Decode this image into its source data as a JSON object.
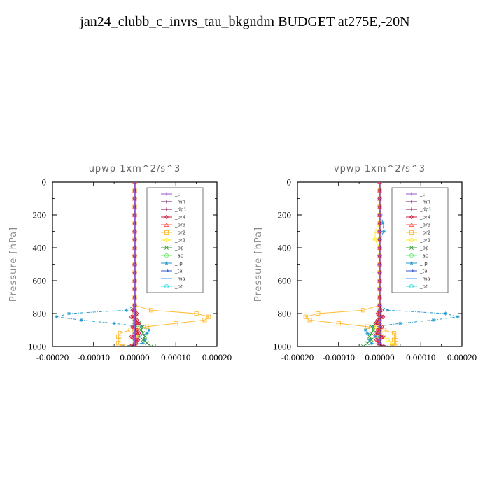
{
  "page": {
    "title": "jan24_clubb_c_invrs_tau_bkgndm  BUDGET at275E,-20N"
  },
  "chart_data": [
    {
      "type": "line",
      "title": "upwp   1xm^2/s^3",
      "xlabel": "",
      "ylabel": "Pressure [hPa]",
      "xlim": [
        -0.0002,
        0.0002
      ],
      "ylim": [
        1000,
        0
      ],
      "x_ticks": [
        "-0.00020",
        "-0.00010",
        "0.00000",
        "0.00010",
        "0.00020"
      ],
      "y_ticks": [
        "0",
        "200",
        "400",
        "600",
        "800",
        "1000"
      ],
      "legend_position": "top-right",
      "pressure": [
        0,
        50,
        100,
        150,
        200,
        250,
        300,
        350,
        400,
        450,
        500,
        550,
        600,
        650,
        700,
        750,
        780,
        800,
        820,
        840,
        860,
        880,
        900,
        920,
        940,
        960,
        980,
        1000
      ],
      "series": [
        {
          "name": "_cl",
          "color": "#9955cc",
          "marker": "plus",
          "values": [
            0,
            0,
            0,
            0,
            0,
            0,
            0,
            0,
            0,
            0,
            0,
            0,
            0,
            0,
            0,
            0,
            0,
            0,
            0,
            0,
            0,
            0,
            0,
            0,
            0,
            0,
            0,
            0
          ]
        },
        {
          "name": "_mfl",
          "color": "#7a1a6a",
          "marker": "plus",
          "values": [
            0,
            0,
            0,
            0,
            0,
            0,
            0,
            0,
            0,
            0,
            0,
            0,
            0,
            0,
            0,
            0,
            0,
            0,
            0,
            0,
            0,
            0,
            0,
            0,
            0,
            0,
            0,
            0
          ]
        },
        {
          "name": "_dp1",
          "color": "#8b0a50",
          "marker": "plus",
          "values": [
            0,
            0,
            0,
            0,
            0,
            0,
            0,
            0,
            0,
            0,
            0,
            0,
            0,
            0,
            0,
            0,
            0,
            0,
            0,
            0,
            0,
            0,
            0,
            0,
            0,
            0,
            0,
            -5e-06
          ]
        },
        {
          "name": "_pr4",
          "color": "#cc2244",
          "marker": "diamond",
          "values": [
            0,
            0,
            0,
            0,
            0,
            0,
            0,
            0,
            0,
            0,
            0,
            0,
            0,
            0,
            0,
            0,
            -5e-06,
            5e-06,
            -8e-06,
            5e-06,
            1e-05,
            -5e-06,
            5e-06,
            1e-05,
            -8e-06,
            8e-06,
            3e-06,
            -1e-05
          ]
        },
        {
          "name": "_pr3",
          "color": "#ff5555",
          "marker": "triangle",
          "values": [
            0,
            0,
            0,
            0,
            0,
            0,
            0,
            0,
            0,
            0,
            0,
            0,
            0,
            0,
            0,
            0,
            0,
            3e-06,
            -5e-06,
            3e-06,
            6e-06,
            -3e-06,
            3e-06,
            6e-06,
            -5e-06,
            5e-06,
            2e-06,
            -8e-06
          ]
        },
        {
          "name": "_pr2",
          "color": "#ffbb33",
          "marker": "square",
          "values": [
            0,
            0,
            0,
            0,
            0,
            0,
            0,
            0,
            0,
            0,
            0,
            0,
            0,
            0,
            0,
            0,
            4e-05,
            0.00015,
            0.00018,
            0.00017,
            0.0001,
            3e-05,
            -1e-05,
            -3.5e-05,
            -4e-05,
            -3.5e-05,
            -4e-05,
            -3e-05
          ]
        },
        {
          "name": "_pr1",
          "color": "#ffee33",
          "marker": "circle",
          "values": [
            0,
            0,
            0,
            0,
            0,
            0,
            0,
            0,
            0,
            0,
            0,
            0,
            0,
            0,
            0,
            0,
            0,
            0,
            0,
            0,
            5e-06,
            8e-06,
            4e-06,
            2e-06,
            5e-06,
            3e-06,
            0,
            -1e-05
          ]
        },
        {
          "name": "_bp",
          "color": "#339933",
          "marker": "cross",
          "values": [
            0,
            0,
            0,
            0,
            0,
            0,
            0,
            0,
            0,
            0,
            0,
            0,
            0,
            0,
            0,
            0,
            0,
            0,
            0,
            0,
            1e-05,
            2e-05,
            1.5e-05,
            2e-05,
            2.5e-05,
            2e-05,
            3e-05,
            4e-05
          ]
        },
        {
          "name": "_ac",
          "color": "#66ee66",
          "marker": "circle",
          "values": [
            0,
            0,
            0,
            0,
            0,
            0,
            0,
            0,
            0,
            0,
            0,
            0,
            0,
            0,
            0,
            0,
            0,
            0,
            0,
            0,
            0,
            0,
            0,
            0,
            0,
            0,
            0,
            0
          ]
        },
        {
          "name": "_tp",
          "color": "#2299cc",
          "marker": "star",
          "values": [
            0,
            0,
            0,
            0,
            0,
            0,
            0,
            0,
            0,
            0,
            0,
            0,
            0,
            0,
            0,
            0,
            -2e-05,
            -0.00016,
            -0.00019,
            -0.00013,
            -5e-05,
            1.5e-05,
            3.5e-05,
            3e-05,
            1e-05,
            2.5e-05,
            2e-05,
            -3e-05
          ]
        },
        {
          "name": "_ta",
          "color": "#3355cc",
          "marker": "arrow",
          "values": [
            0,
            0,
            0,
            0,
            0,
            0,
            0,
            0,
            0,
            0,
            0,
            0,
            0,
            0,
            0,
            0,
            0,
            0,
            0,
            0,
            0,
            0,
            0,
            0,
            0,
            0,
            0,
            0
          ]
        },
        {
          "name": "_ma",
          "color": "#3399ff",
          "marker": "dash",
          "values": [
            0,
            0,
            0,
            0,
            0,
            0,
            0,
            0,
            0,
            0,
            0,
            0,
            0,
            0,
            0,
            0,
            0,
            0,
            0,
            0,
            0,
            0,
            0,
            0,
            0,
            0,
            0,
            0
          ]
        },
        {
          "name": "_bt",
          "color": "#33dddd",
          "marker": "circle",
          "values": [
            0,
            0,
            0,
            0,
            0,
            0,
            0,
            0,
            0,
            0,
            0,
            0,
            0,
            0,
            0,
            0,
            0,
            0,
            0,
            0,
            0,
            0,
            0,
            0,
            0,
            0,
            0,
            0
          ]
        }
      ]
    },
    {
      "type": "line",
      "title": "vpwp   1xm^2/s^3",
      "xlabel": "",
      "ylabel": "Pressure [hPa]",
      "xlim": [
        -0.0002,
        0.0002
      ],
      "ylim": [
        1000,
        0
      ],
      "x_ticks": [
        "-0.00020",
        "-0.00010",
        "0.00000",
        "0.00010",
        "0.00020"
      ],
      "y_ticks": [
        "0",
        "200",
        "400",
        "600",
        "800",
        "1000"
      ],
      "legend_position": "top-right",
      "pressure": [
        0,
        50,
        100,
        150,
        200,
        250,
        300,
        350,
        400,
        450,
        500,
        550,
        600,
        650,
        700,
        750,
        780,
        800,
        820,
        840,
        860,
        880,
        900,
        920,
        940,
        960,
        980,
        1000
      ],
      "series": [
        {
          "name": "_cl",
          "color": "#9955cc",
          "marker": "plus",
          "values": [
            0,
            0,
            0,
            0,
            0,
            0,
            0,
            0,
            0,
            0,
            0,
            0,
            0,
            0,
            0,
            0,
            0,
            0,
            0,
            0,
            0,
            0,
            0,
            0,
            0,
            0,
            0,
            0
          ]
        },
        {
          "name": "_mfl",
          "color": "#7a1a6a",
          "marker": "plus",
          "values": [
            0,
            0,
            0,
            0,
            0,
            0,
            0,
            0,
            0,
            0,
            0,
            0,
            0,
            0,
            0,
            0,
            0,
            0,
            0,
            0,
            0,
            0,
            0,
            0,
            0,
            0,
            0,
            0
          ]
        },
        {
          "name": "_dp1",
          "color": "#8b0a50",
          "marker": "plus",
          "values": [
            0,
            0,
            0,
            0,
            0,
            0,
            0,
            0,
            0,
            0,
            0,
            0,
            0,
            0,
            0,
            0,
            0,
            0,
            0,
            0,
            0,
            0,
            0,
            0,
            0,
            0,
            0,
            5e-06
          ]
        },
        {
          "name": "_pr4",
          "color": "#cc2244",
          "marker": "diamond",
          "values": [
            0,
            0,
            0,
            0,
            0,
            0,
            0,
            0,
            0,
            0,
            0,
            0,
            0,
            0,
            0,
            0,
            5e-06,
            -5e-06,
            8e-06,
            -5e-06,
            -1e-05,
            5e-06,
            -5e-06,
            -1e-05,
            8e-06,
            -8e-06,
            -3e-06,
            1e-05
          ]
        },
        {
          "name": "_pr3",
          "color": "#ff5555",
          "marker": "triangle",
          "values": [
            0,
            0,
            0,
            0,
            0,
            0,
            0,
            0,
            0,
            0,
            0,
            0,
            0,
            0,
            0,
            0,
            0,
            -3e-06,
            5e-06,
            -3e-06,
            -6e-06,
            3e-06,
            -3e-06,
            -6e-06,
            5e-06,
            -5e-06,
            -2e-06,
            8e-06
          ]
        },
        {
          "name": "_pr2",
          "color": "#ffbb33",
          "marker": "square",
          "values": [
            0,
            0,
            0,
            0,
            0,
            0,
            0,
            0,
            0,
            0,
            0,
            0,
            0,
            0,
            0,
            0,
            -4e-05,
            -0.00015,
            -0.00018,
            -0.00017,
            -0.0001,
            -3e-05,
            1e-05,
            3.5e-05,
            4e-05,
            3.5e-05,
            4e-05,
            3e-05
          ]
        },
        {
          "name": "_pr1",
          "color": "#ffee33",
          "marker": "circle",
          "values": [
            0,
            0,
            0,
            0,
            0,
            0,
            -1e-05,
            -1.2e-05,
            0,
            0,
            0,
            0,
            0,
            0,
            0,
            0,
            0,
            0,
            0,
            0,
            -5e-06,
            -8e-06,
            -4e-06,
            -2e-06,
            1e-05,
            2e-05,
            3e-05,
            4e-05
          ]
        },
        {
          "name": "_bp",
          "color": "#339933",
          "marker": "cross",
          "values": [
            0,
            0,
            0,
            0,
            0,
            0,
            0,
            0,
            0,
            0,
            0,
            0,
            0,
            0,
            0,
            0,
            0,
            0,
            0,
            0,
            -1e-05,
            -2e-05,
            -1.5e-05,
            -2e-05,
            -2.5e-05,
            -2e-05,
            -3e-05,
            -4e-05
          ]
        },
        {
          "name": "_ac",
          "color": "#66ee66",
          "marker": "circle",
          "values": [
            0,
            0,
            0,
            0,
            0,
            0,
            0,
            0,
            0,
            0,
            0,
            0,
            0,
            0,
            0,
            0,
            0,
            0,
            0,
            0,
            0,
            0,
            0,
            0,
            0,
            0,
            0,
            0
          ]
        },
        {
          "name": "_tp",
          "color": "#2299cc",
          "marker": "star",
          "values": [
            0,
            0,
            0,
            0,
            3e-06,
            8e-06,
            1e-05,
            0,
            0,
            0,
            0,
            0,
            0,
            0,
            0,
            0,
            2e-05,
            0.00016,
            0.00019,
            0.00013,
            5e-05,
            -1.5e-05,
            -3.5e-05,
            -3e-05,
            -1e-05,
            -2.5e-05,
            -2e-05,
            3e-05
          ]
        },
        {
          "name": "_ta",
          "color": "#3355cc",
          "marker": "arrow",
          "values": [
            0,
            0,
            0,
            0,
            0,
            0,
            0,
            0,
            0,
            0,
            0,
            0,
            0,
            0,
            0,
            0,
            0,
            0,
            0,
            0,
            0,
            0,
            0,
            0,
            0,
            0,
            0,
            0
          ]
        },
        {
          "name": "_ma",
          "color": "#3399ff",
          "marker": "dash",
          "values": [
            0,
            0,
            0,
            0,
            0,
            0,
            0,
            0,
            0,
            0,
            0,
            0,
            0,
            0,
            0,
            0,
            0,
            0,
            0,
            0,
            0,
            0,
            0,
            0,
            0,
            0,
            0,
            0
          ]
        },
        {
          "name": "_bt",
          "color": "#33dddd",
          "marker": "circle",
          "values": [
            0,
            0,
            0,
            0,
            0,
            0,
            0,
            0,
            0,
            0,
            0,
            0,
            0,
            0,
            0,
            0,
            0,
            0,
            0,
            0,
            0,
            0,
            0,
            0,
            0,
            0,
            0,
            0
          ]
        }
      ]
    }
  ]
}
